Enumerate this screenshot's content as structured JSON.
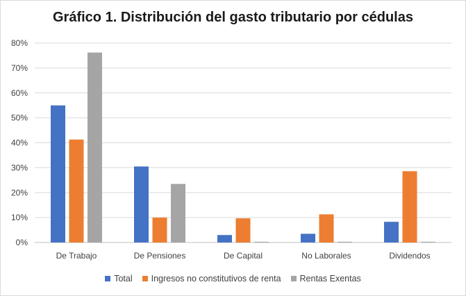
{
  "chart_data": {
    "type": "bar",
    "title": "Gráfico 1. Distribución del gasto tributario por cédulas",
    "categories": [
      "De Trabajo",
      "De Pensiones",
      "De Capital",
      "No Laborales",
      "Dividendos"
    ],
    "series": [
      {
        "name": "Total",
        "color": "#4472c4",
        "values": [
          55,
          30.5,
          3,
          3.5,
          8.3
        ]
      },
      {
        "name": "Ingresos no constitutivos de renta",
        "color": "#ed7d31",
        "values": [
          41.3,
          10,
          9.7,
          11.3,
          28.6
        ]
      },
      {
        "name": "Rentas Exentas",
        "color": "#a5a5a5",
        "values": [
          76.2,
          23.5,
          0.3,
          0.3,
          0.3
        ]
      }
    ],
    "y_ticks": [
      "0%",
      "10%",
      "20%",
      "30%",
      "40%",
      "50%",
      "60%",
      "70%",
      "80%"
    ],
    "ylim": [
      0,
      80
    ],
    "grid": true,
    "legend_position": "bottom"
  }
}
